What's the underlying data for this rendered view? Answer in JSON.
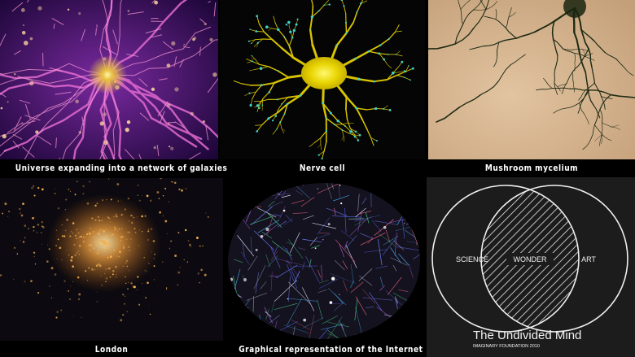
{
  "tiles": [
    {
      "caption": "Universe expanding into a network of galaxies"
    },
    {
      "caption": "Nerve cell"
    },
    {
      "caption": "Mushroom mycelium"
    },
    {
      "caption": "London"
    },
    {
      "caption": "Graphical representation of the Internet"
    },
    {
      "caption": ""
    }
  ],
  "venn": {
    "left_label": "SCIENCE",
    "center_label": "WONDER",
    "right_label": "ART",
    "title": "The Undivided Mind",
    "credit": "IMAGINARY FOUNDATION 2010"
  },
  "colors": {
    "galaxy": "#3a0d6e",
    "neuron": "#e8d400",
    "mycelium_bg": "#d9b894",
    "city_light": "#f0a040",
    "venn_bg": "#1c1c1c"
  }
}
